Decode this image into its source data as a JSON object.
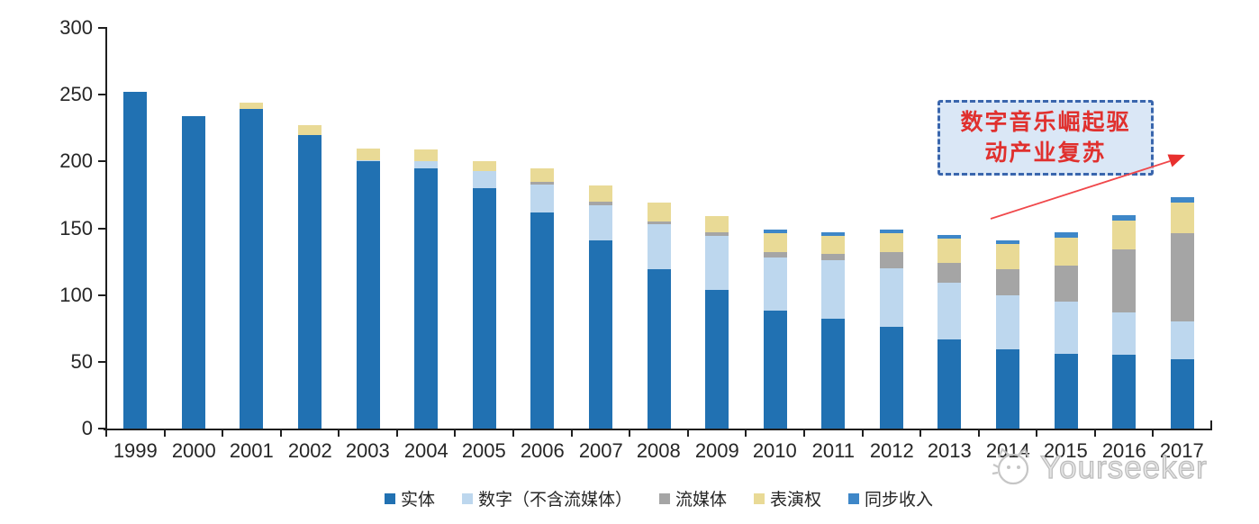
{
  "chart_data": {
    "type": "bar",
    "stacked": true,
    "title": "",
    "xlabel": "",
    "ylabel": "",
    "categories": [
      "1999",
      "2000",
      "2001",
      "2002",
      "2003",
      "2004",
      "2005",
      "2006",
      "2007",
      "2008",
      "2009",
      "2010",
      "2011",
      "2012",
      "2013",
      "2014",
      "2015",
      "2016",
      "2017"
    ],
    "series": [
      {
        "key": "physical",
        "name": "实体",
        "color": "#2171B2",
        "values": [
          252,
          234,
          239,
          220,
          200,
          195,
          180,
          162,
          141,
          119,
          104,
          88,
          82,
          76,
          67,
          59,
          56,
          55,
          52
        ]
      },
      {
        "key": "digital-excl-streaming",
        "name": "数字（不含流媒体）",
        "color": "#BDD7EE",
        "values": [
          0,
          0,
          0,
          0,
          1,
          5,
          13,
          21,
          26,
          34,
          40,
          40,
          44,
          44,
          42,
          41,
          39,
          32,
          28
        ]
      },
      {
        "key": "streaming",
        "name": "流媒体",
        "color": "#A5A5A5",
        "values": [
          0,
          0,
          0,
          0,
          0,
          0,
          0,
          2,
          3,
          2,
          3,
          4,
          5,
          12,
          15,
          19,
          27,
          47,
          66
        ]
      },
      {
        "key": "performance-rights",
        "name": "表演权",
        "color": "#E9DA96",
        "values": [
          0,
          0,
          5,
          7,
          9,
          9,
          7,
          10,
          12,
          14,
          12,
          14,
          13,
          14,
          18,
          19,
          21,
          22,
          23
        ]
      },
      {
        "key": "sync-revenue",
        "name": "同步收入",
        "color": "#3E87C8",
        "values": [
          0,
          0,
          0,
          0,
          0,
          0,
          0,
          0,
          0,
          0,
          0,
          3,
          3,
          3,
          3,
          3,
          4,
          4,
          4
        ]
      }
    ],
    "ylim": [
      0,
      300
    ],
    "yticks": [
      0,
      50,
      100,
      150,
      200,
      250,
      300
    ],
    "grid": false,
    "legend_position": "bottom"
  },
  "annotation": {
    "text_lines": [
      "数字音乐崛起驱",
      "动产业复苏"
    ],
    "text_color": "#E0302E",
    "border_color": "#3A66AD",
    "fill_color": "#DAE7F6",
    "arrow_color": "#F0484B"
  },
  "watermark": {
    "text": "Yourseeker"
  }
}
